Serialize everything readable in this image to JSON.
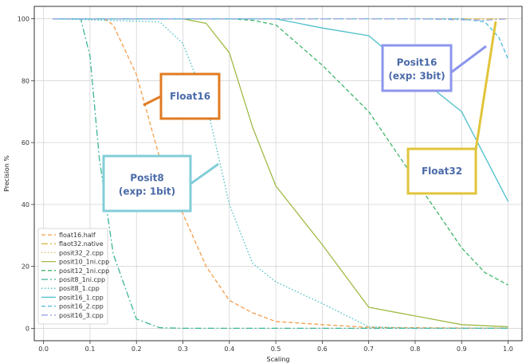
{
  "chart_data": {
    "type": "line",
    "xlabel": "Scaling",
    "ylabel": "Precision %",
    "xlim": [
      -0.02,
      1.03
    ],
    "ylim": [
      -4,
      104
    ],
    "xticks": [
      "0.0",
      "0.1",
      "0.2",
      "0.3",
      "0.4",
      "0.5",
      "0.6",
      "0.7",
      "0.8",
      "0.9",
      "1.0"
    ],
    "yticks": [
      "0",
      "20",
      "40",
      "60",
      "80",
      "100"
    ],
    "grid": true,
    "legend_position": "lower-left",
    "series": [
      {
        "name": "float16.half",
        "color": "#f39c4a",
        "dash": "5,3",
        "x": [
          0.02,
          0.05,
          0.1,
          0.13,
          0.15,
          0.2,
          0.25,
          0.3,
          0.35,
          0.4,
          0.45,
          0.5,
          0.6,
          0.7,
          0.8,
          0.9,
          1.0
        ],
        "y": [
          100,
          100,
          100,
          100,
          98,
          82,
          55,
          37,
          20,
          9,
          5,
          2.2,
          1.2,
          0.3,
          0.2,
          0.1,
          0.1
        ]
      },
      {
        "name": "flaot32.native",
        "color": "#d9b84a",
        "dash": "8,3,2,3",
        "x": [
          0.02,
          0.5,
          0.9,
          0.95,
          0.98,
          1.0
        ],
        "y": [
          100,
          100,
          100,
          100,
          100,
          100
        ]
      },
      {
        "name": "posit32_2.cpp",
        "color": "#e0c060",
        "dash": "1.5,2.5",
        "x": [
          0.02,
          0.5,
          0.9,
          0.95,
          1.0
        ],
        "y": [
          100,
          100,
          100,
          100,
          100
        ]
      },
      {
        "name": "posit10_1ni.cpp",
        "color": "#9fba45",
        "dash": "",
        "x": [
          0.02,
          0.3,
          0.35,
          0.4,
          0.45,
          0.5,
          0.6,
          0.7,
          0.8,
          0.9,
          1.0
        ],
        "y": [
          100,
          100,
          98.5,
          89,
          65,
          46,
          27,
          6.8,
          4,
          1.2,
          0.5
        ]
      },
      {
        "name": "posit12_1ni.cpp",
        "color": "#3fb56a",
        "dash": "5,3",
        "x": [
          0.02,
          0.4,
          0.45,
          0.5,
          0.6,
          0.7,
          0.8,
          0.9,
          0.95,
          1.0
        ],
        "y": [
          100,
          100,
          99.5,
          98,
          85,
          70,
          48,
          26,
          18,
          14
        ]
      },
      {
        "name": "posit8_1ni.cpp",
        "color": "#3bb598",
        "dash": "8,3,2,3",
        "x": [
          0.02,
          0.08,
          0.1,
          0.12,
          0.15,
          0.2,
          0.25,
          0.3,
          0.5,
          0.7,
          1.0
        ],
        "y": [
          100,
          100,
          88,
          55,
          24,
          3,
          0.2,
          0,
          0,
          0,
          0
        ]
      },
      {
        "name": "posit8_1.cpp",
        "color": "#47bfc4",
        "dash": "1.5,2.5",
        "x": [
          0.02,
          0.25,
          0.3,
          0.35,
          0.4,
          0.45,
          0.5,
          0.6,
          0.7,
          0.8,
          1.0
        ],
        "y": [
          100,
          99,
          92,
          73,
          40,
          21,
          15,
          8,
          0.5,
          0,
          0
        ]
      },
      {
        "name": "posit16_1.cpp",
        "color": "#4cbfcb",
        "dash": "",
        "x": [
          0.02,
          0.5,
          0.6,
          0.7,
          0.8,
          0.9,
          1.0
        ],
        "y": [
          100,
          100,
          97,
          94.5,
          82,
          70,
          41
        ]
      },
      {
        "name": "posit16_2.cpp",
        "color": "#4cb8d8",
        "dash": "5,3",
        "x": [
          0.02,
          0.8,
          0.9,
          0.95,
          0.98,
          1.0
        ],
        "y": [
          100,
          100,
          100,
          99,
          94,
          87
        ]
      },
      {
        "name": "posit16_3.cpp",
        "color": "#9aa6e6",
        "dash": "8,3,2,3",
        "x": [
          0.02,
          0.8,
          0.95,
          1.0
        ],
        "y": [
          100,
          100,
          99.5,
          100
        ]
      }
    ],
    "annotations": [
      {
        "text": "Float16",
        "color": "#e07b22",
        "text_color": "#4a6aa8"
      },
      {
        "text": "Posit8",
        "line2": "(exp: 1bit)",
        "color": "#82cdd8",
        "text_color": "#4a6aa8"
      },
      {
        "text": "Posit16",
        "line2": "(exp: 3bit)",
        "color": "#8c96ec",
        "text_color": "#4a6aa8"
      },
      {
        "text": "Float32",
        "color": "#e1c43a",
        "text_color": "#4a6aa8"
      }
    ]
  }
}
